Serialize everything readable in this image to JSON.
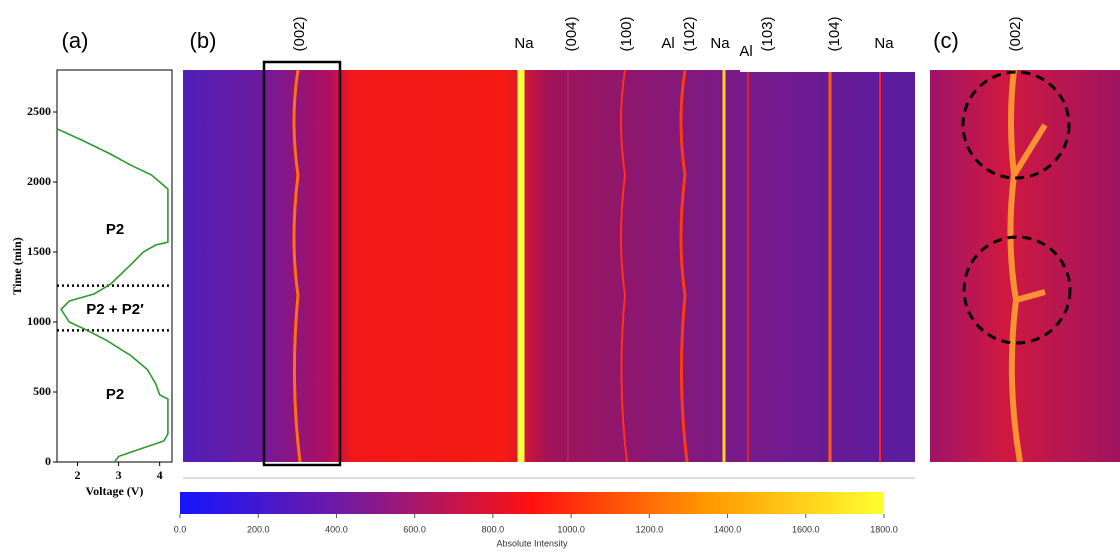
{
  "chart_data": [
    {
      "type": "line",
      "title": "(a)",
      "xlabel": "Voltage (V)",
      "ylabel": "Time (min)",
      "xlim": [
        1.5,
        4.3
      ],
      "xticks": [
        2,
        3,
        4
      ],
      "ylim": [
        0,
        2800
      ],
      "yticks": [
        0,
        500,
        1000,
        1500,
        2000,
        2500
      ],
      "series": [
        {
          "color": "#2e9a2e",
          "x": [
            2.9,
            3.0,
            3.4,
            4.1,
            4.2,
            4.2,
            4.0,
            3.9,
            3.7,
            3.3,
            2.7,
            2.2,
            1.8,
            1.6,
            1.8,
            2.4,
            2.8,
            3.3,
            3.6,
            3.9,
            4.2,
            4.2,
            4.0,
            3.8,
            3.3,
            2.8,
            2.1,
            1.5
          ],
          "values": [
            0,
            40,
            80,
            150,
            200,
            450,
            480,
            560,
            660,
            760,
            870,
            945,
            1000,
            1090,
            1150,
            1200,
            1270,
            1410,
            1500,
            1550,
            1570,
            1950,
            2000,
            2050,
            2120,
            2200,
            2300,
            2380
          ]
        }
      ],
      "annotations": [
        "P2",
        "P2 + P2′",
        "P2"
      ],
      "phase_boundaries": [
        940,
        1260
      ]
    },
    {
      "type": "heatmap",
      "title": "(b)",
      "peak_labels": [
        "(002)",
        "Na",
        "(004)",
        "(100)",
        "Al",
        "(102)",
        "Na",
        "Al",
        "(103)",
        "(104)",
        "Na"
      ]
    },
    {
      "type": "heatmap",
      "title": "(c)",
      "peak_labels": [
        "(002)"
      ]
    },
    {
      "type": "colorbar",
      "xlabel": "Absolute Intensity",
      "xlim": [
        0,
        1800
      ],
      "xticks": [
        {
          "value": 0,
          "label": "0.0"
        },
        {
          "value": 200,
          "label": "200.0"
        },
        {
          "value": 400,
          "label": "400.0"
        },
        {
          "value": 600,
          "label": "600.0"
        },
        {
          "value": 800,
          "label": "800.0"
        },
        {
          "value": 1000,
          "label": "1000.0"
        },
        {
          "value": 1200,
          "label": "1200.0"
        },
        {
          "value": 1400,
          "label": "1400.0"
        },
        {
          "value": 1600,
          "label": "1600.0"
        },
        {
          "value": 1800,
          "label": "1800.0"
        }
      ],
      "colors": [
        "#1515ff",
        "#7a1a9a",
        "#ff1010",
        "#ff9900",
        "#ffff30"
      ]
    }
  ]
}
